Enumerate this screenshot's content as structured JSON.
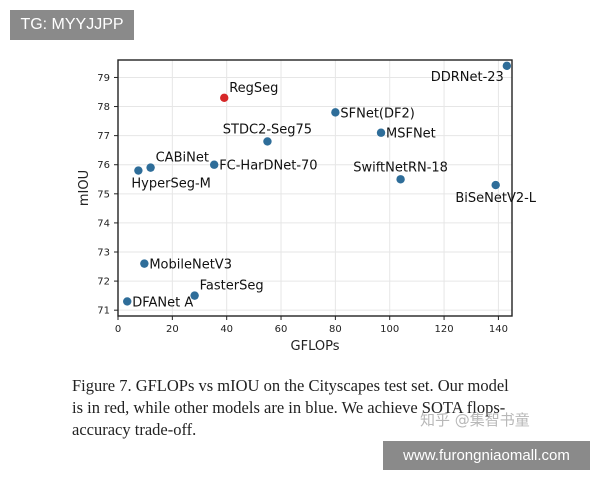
{
  "watermarks": {
    "tag": "TG: MYYJJPP",
    "zhihu": "知乎 @集智书童",
    "site": "www.furongniaomall.com"
  },
  "caption": {
    "lines": [
      "Figure 7. GFLOPs vs mIOU on the Cityscapes test set. Our model",
      "is in red, while other models are in blue. We achieve SOTA flops-",
      "accuracy trade-off."
    ]
  },
  "colors": {
    "highlight": "#d62728",
    "default": "#2e6d99",
    "grid": "#e6e6e6",
    "axis": "#222222"
  },
  "chart_data": {
    "type": "scatter",
    "xlabel": "GFLOPs",
    "ylabel": "mIOU",
    "xlim": [
      0,
      145
    ],
    "ylim": [
      70.8,
      79.6
    ],
    "xticks": [
      0,
      20,
      40,
      60,
      80,
      100,
      120,
      140
    ],
    "yticks": [
      71,
      72,
      73,
      74,
      75,
      76,
      77,
      78,
      79
    ],
    "grid": true,
    "points": [
      {
        "label": "DDRNet-23",
        "x": 143.1,
        "y": 79.4,
        "highlight": false,
        "label_pos": "left-below"
      },
      {
        "label": "RegSeg",
        "x": 39.1,
        "y": 78.3,
        "highlight": true,
        "label_pos": "right-above"
      },
      {
        "label": "SFNet(DF2)",
        "x": 80.0,
        "y": 77.8,
        "highlight": false,
        "label_pos": "right"
      },
      {
        "label": "MSFNet",
        "x": 96.8,
        "y": 77.1,
        "highlight": false,
        "label_pos": "right"
      },
      {
        "label": "STDC2-Seg75",
        "x": 55.0,
        "y": 76.8,
        "highlight": false,
        "label_pos": "center-above"
      },
      {
        "label": "FC-HarDNet-70",
        "x": 35.4,
        "y": 76.0,
        "highlight": false,
        "label_pos": "right"
      },
      {
        "label": "CABiNet",
        "x": 12.0,
        "y": 75.9,
        "highlight": false,
        "label_pos": "right-above"
      },
      {
        "label": "HyperSeg-M",
        "x": 7.5,
        "y": 75.8,
        "highlight": false,
        "label_pos": "right-below"
      },
      {
        "label": "SwiftNetRN-18",
        "x": 104.0,
        "y": 75.5,
        "highlight": false,
        "label_pos": "center-above"
      },
      {
        "label": "BiSeNetV2-L",
        "x": 139.0,
        "y": 75.3,
        "highlight": false,
        "label_pos": "center-below"
      },
      {
        "label": "MobileNetV3",
        "x": 9.7,
        "y": 72.6,
        "highlight": false,
        "label_pos": "right"
      },
      {
        "label": "FasterSeg",
        "x": 28.2,
        "y": 71.5,
        "highlight": false,
        "label_pos": "right-above"
      },
      {
        "label": "DFANet A",
        "x": 3.4,
        "y": 71.3,
        "highlight": false,
        "label_pos": "right"
      }
    ]
  }
}
